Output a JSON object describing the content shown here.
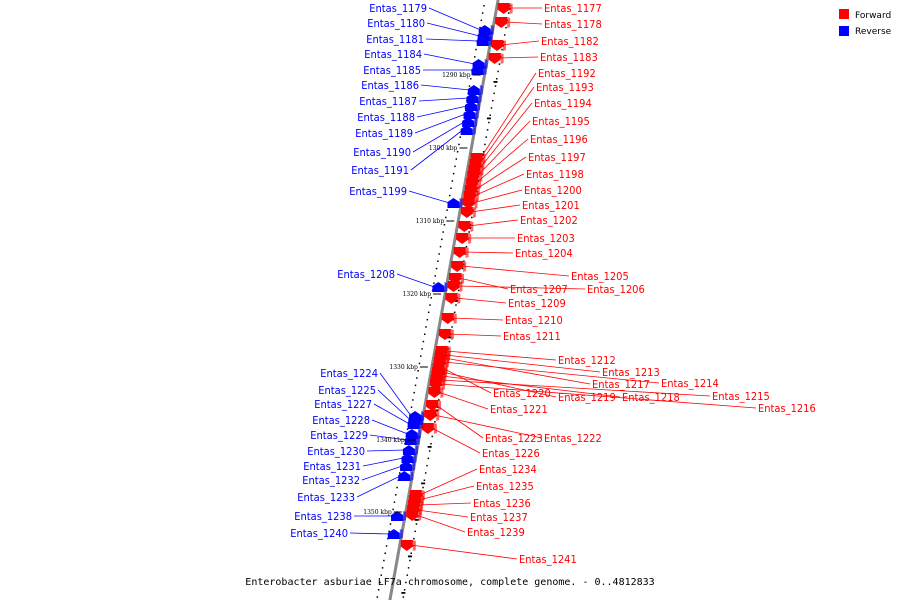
{
  "legend": [
    {
      "label": "Forward",
      "color": "#ff0000"
    },
    {
      "label": "Reverse",
      "color": "#0000ff"
    }
  ],
  "caption": "Enterobacter asburiae LF7a chromosome, complete genome. - 0..4812833",
  "colors": {
    "forward": "#ff0000",
    "reverse": "#0000ff",
    "backbone": "#888888"
  },
  "ticks": [
    "1290 kbp",
    "1300 kbp",
    "1310 kbp",
    "1320 kbp",
    "1330 kbp",
    "1340 kbp",
    "1350 kbp"
  ],
  "forward_genes": [
    "Entas_1177",
    "Entas_1178",
    "Entas_1182",
    "Entas_1183",
    "Entas_1192",
    "Entas_1193",
    "Entas_1194",
    "Entas_1195",
    "Entas_1196",
    "Entas_1197",
    "Entas_1198",
    "Entas_1200",
    "Entas_1201",
    "Entas_1202",
    "Entas_1203",
    "Entas_1204",
    "Entas_1205",
    "Entas_1207",
    "Entas_1206",
    "Entas_1209",
    "Entas_1210",
    "Entas_1211",
    "Entas_1212",
    "Entas_1213",
    "Entas_1217",
    "Entas_1214",
    "Entas_1220",
    "Entas_1219",
    "Entas_1218",
    "Entas_1215",
    "Entas_1216",
    "Entas_1221",
    "Entas_1223",
    "Entas_1222",
    "Entas_1226",
    "Entas_1234",
    "Entas_1235",
    "Entas_1236",
    "Entas_1237",
    "Entas_1239",
    "Entas_1241"
  ],
  "reverse_genes": [
    "Entas_1179",
    "Entas_1180",
    "Entas_1181",
    "Entas_1184",
    "Entas_1185",
    "Entas_1186",
    "Entas_1187",
    "Entas_1188",
    "Entas_1189",
    "Entas_1190",
    "Entas_1191",
    "Entas_1199",
    "Entas_1208",
    "Entas_1224",
    "Entas_1225",
    "Entas_1227",
    "Entas_1228",
    "Entas_1229",
    "Entas_1230",
    "Entas_1231",
    "Entas_1232",
    "Entas_1233",
    "Entas_1238",
    "Entas_1240"
  ]
}
